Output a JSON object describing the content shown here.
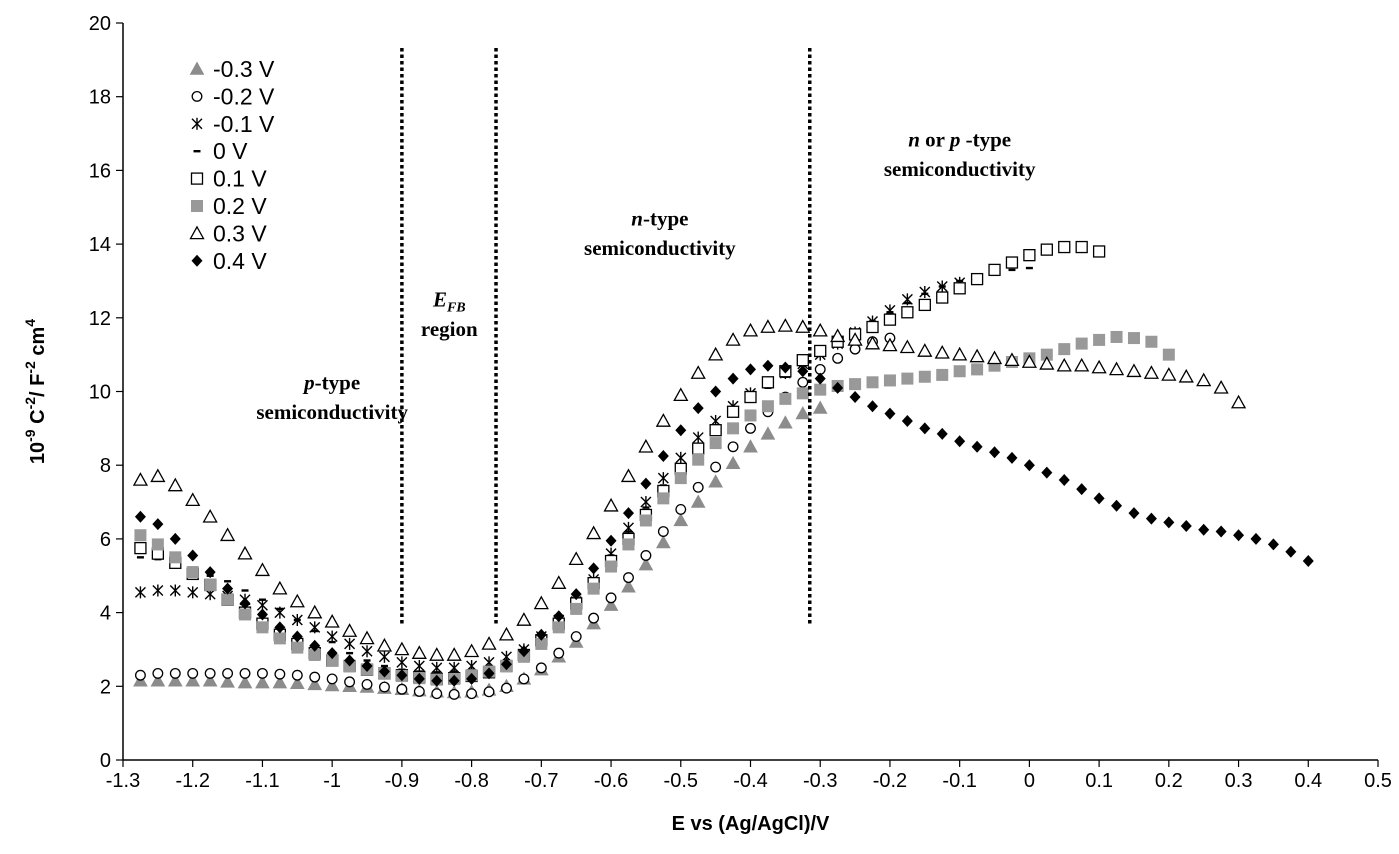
{
  "chart_data": {
    "type": "scatter",
    "xlabel": "E vs (Ag/AgCl)/V",
    "ylabel_parts": [
      "10",
      "-9",
      " C",
      "-2",
      "/ F",
      "-2",
      " cm",
      "4"
    ],
    "xlim": [
      -1.3,
      0.5
    ],
    "ylim": [
      0,
      20
    ],
    "x_ticks": [
      "-1.3",
      "-1.2",
      "-1.1",
      "-1",
      "-0.9",
      "-0.8",
      "-0.7",
      "-0.6",
      "-0.5",
      "-0.4",
      "-0.3",
      "-0.2",
      "-0.1",
      "0",
      "0.1",
      "0.2",
      "0.3",
      "0.4",
      "0.5"
    ],
    "y_ticks": [
      "0",
      "2",
      "4",
      "6",
      "8",
      "10",
      "12",
      "14",
      "16",
      "18",
      "20"
    ],
    "grid": false,
    "legend_position": "top-left",
    "vlines": [
      -0.9,
      -0.765,
      -0.315
    ],
    "annotations": [
      {
        "id": "p-type",
        "lines": [
          [
            "",
            "p",
            "-type"
          ],
          [
            "semiconductivity",
            "",
            ""
          ]
        ],
        "x": -1.0,
        "y": [
          10.05,
          9.25
        ]
      },
      {
        "id": "efb",
        "lines": [
          [
            "",
            "E",
            ""
          ],
          [
            "region",
            "",
            ""
          ]
        ],
        "sub": "FB",
        "x": -0.832,
        "y": [
          12.3,
          11.5
        ]
      },
      {
        "id": "n-type",
        "lines": [
          [
            "",
            "n",
            "-type"
          ],
          [
            "semiconductivity",
            "",
            ""
          ]
        ],
        "x": -0.53,
        "y": [
          14.5,
          13.7
        ]
      },
      {
        "id": "n-or-p",
        "lines": [
          [
            "",
            "n",
            " or "
          ],
          [
            "semiconductivity",
            "",
            ""
          ]
        ],
        "x": -0.1,
        "y": [
          16.65,
          15.85
        ]
      }
    ],
    "annotation_extra": {
      "n-or-p": {
        "italic2": "p",
        "tail": " -type"
      }
    },
    "series": [
      {
        "name": "-0.3 V",
        "marker": "triangle-gray",
        "color": "#8c8c8c",
        "x": [
          -1.275,
          -1.25,
          -1.225,
          -1.2,
          -1.175,
          -1.15,
          -1.125,
          -1.1,
          -1.075,
          -1.05,
          -1.025,
          -1.0,
          -0.975,
          -0.95,
          -0.925,
          -0.9,
          -0.875,
          -0.85,
          -0.825,
          -0.8,
          -0.775,
          -0.75,
          -0.725,
          -0.7,
          -0.675,
          -0.65,
          -0.625,
          -0.6,
          -0.575,
          -0.55,
          -0.525,
          -0.5,
          -0.475,
          -0.45,
          -0.425,
          -0.4,
          -0.375,
          -0.35,
          -0.325,
          -0.3
        ],
        "y": [
          2.15,
          2.15,
          2.15,
          2.15,
          2.15,
          2.12,
          2.1,
          2.1,
          2.1,
          2.08,
          2.05,
          2.02,
          2.0,
          1.98,
          1.95,
          1.92,
          1.88,
          1.85,
          1.83,
          1.85,
          1.9,
          2.0,
          2.2,
          2.45,
          2.8,
          3.2,
          3.7,
          4.2,
          4.7,
          5.3,
          5.9,
          6.5,
          7.0,
          7.55,
          8.05,
          8.5,
          8.85,
          9.15,
          9.4,
          9.55
        ]
      },
      {
        "name": "-0.2 V",
        "marker": "circle-open",
        "color": "#000000",
        "x": [
          -1.275,
          -1.25,
          -1.225,
          -1.2,
          -1.175,
          -1.15,
          -1.125,
          -1.1,
          -1.075,
          -1.05,
          -1.025,
          -1.0,
          -0.975,
          -0.95,
          -0.925,
          -0.9,
          -0.875,
          -0.85,
          -0.825,
          -0.8,
          -0.775,
          -0.75,
          -0.725,
          -0.7,
          -0.675,
          -0.65,
          -0.625,
          -0.6,
          -0.575,
          -0.55,
          -0.525,
          -0.5,
          -0.475,
          -0.45,
          -0.425,
          -0.4,
          -0.375,
          -0.35,
          -0.325,
          -0.3,
          -0.275,
          -0.25,
          -0.225,
          -0.2
        ],
        "y": [
          2.3,
          2.35,
          2.35,
          2.35,
          2.35,
          2.35,
          2.35,
          2.35,
          2.33,
          2.3,
          2.25,
          2.2,
          2.12,
          2.05,
          1.98,
          1.92,
          1.86,
          1.8,
          1.78,
          1.8,
          1.85,
          1.95,
          2.2,
          2.5,
          2.9,
          3.35,
          3.85,
          4.4,
          4.95,
          5.55,
          6.2,
          6.8,
          7.4,
          7.95,
          8.5,
          9.0,
          9.45,
          9.85,
          10.25,
          10.6,
          10.9,
          11.15,
          11.35,
          11.45
        ]
      },
      {
        "name": "-0.1 V",
        "marker": "asterisk",
        "color": "#000000",
        "x": [
          -1.275,
          -1.25,
          -1.225,
          -1.2,
          -1.175,
          -1.15,
          -1.125,
          -1.1,
          -1.075,
          -1.05,
          -1.025,
          -1.0,
          -0.975,
          -0.95,
          -0.925,
          -0.9,
          -0.875,
          -0.85,
          -0.825,
          -0.8,
          -0.775,
          -0.75,
          -0.725,
          -0.7,
          -0.675,
          -0.65,
          -0.625,
          -0.6,
          -0.575,
          -0.55,
          -0.525,
          -0.5,
          -0.475,
          -0.45,
          -0.425,
          -0.4,
          -0.375,
          -0.35,
          -0.325,
          -0.3,
          -0.275,
          -0.25,
          -0.225,
          -0.2,
          -0.175,
          -0.15,
          -0.125,
          -0.1
        ],
        "y": [
          4.55,
          4.6,
          4.6,
          4.55,
          4.5,
          4.45,
          4.35,
          4.2,
          4.0,
          3.8,
          3.6,
          3.35,
          3.15,
          2.95,
          2.8,
          2.65,
          2.55,
          2.5,
          2.5,
          2.55,
          2.65,
          2.8,
          3.0,
          3.35,
          3.8,
          4.3,
          4.9,
          5.6,
          6.3,
          7.0,
          7.65,
          8.2,
          8.75,
          9.2,
          9.6,
          9.95,
          10.25,
          10.5,
          10.75,
          11.0,
          11.3,
          11.6,
          11.9,
          12.2,
          12.5,
          12.7,
          12.85,
          12.95
        ]
      },
      {
        "name": "0 V",
        "marker": "dash",
        "color": "#000000",
        "x": [
          -1.275,
          -1.25,
          -1.225,
          -1.2,
          -1.175,
          -1.15,
          -1.125,
          -1.1,
          -1.075,
          -1.05,
          -1.025,
          -1.0,
          -0.975,
          -0.95,
          -0.925,
          -0.9,
          -0.875,
          -0.85,
          -0.825,
          -0.8,
          -0.775,
          -0.75,
          -0.725,
          -0.7,
          -0.675,
          -0.65,
          -0.625,
          -0.6,
          -0.575,
          -0.55,
          -0.525,
          -0.5,
          -0.475,
          -0.45,
          -0.425,
          -0.4,
          -0.375,
          -0.35,
          -0.325,
          -0.3,
          -0.275,
          -0.25,
          -0.225,
          -0.2,
          -0.175,
          -0.15,
          -0.125,
          -0.1,
          -0.075,
          -0.05,
          -0.025,
          0.0
        ],
        "y": [
          5.5,
          5.45,
          5.4,
          5.2,
          5.0,
          4.85,
          4.6,
          4.35,
          4.1,
          3.8,
          3.5,
          3.2,
          2.9,
          2.7,
          2.55,
          2.45,
          2.4,
          2.38,
          2.4,
          2.45,
          2.55,
          2.7,
          2.95,
          3.3,
          3.75,
          4.3,
          4.9,
          5.55,
          6.2,
          6.85,
          7.45,
          8.0,
          8.5,
          8.95,
          9.35,
          9.75,
          10.1,
          10.4,
          10.7,
          11.0,
          11.3,
          11.6,
          11.9,
          12.15,
          12.4,
          12.65,
          12.85,
          13.0,
          13.15,
          13.25,
          13.3,
          13.35
        ]
      },
      {
        "name": "0.1 V",
        "marker": "square-open",
        "color": "#000000",
        "x": [
          -1.275,
          -1.25,
          -1.225,
          -1.2,
          -1.175,
          -1.15,
          -1.125,
          -1.1,
          -1.075,
          -1.05,
          -1.025,
          -1.0,
          -0.975,
          -0.95,
          -0.925,
          -0.9,
          -0.875,
          -0.85,
          -0.825,
          -0.8,
          -0.775,
          -0.75,
          -0.725,
          -0.7,
          -0.675,
          -0.65,
          -0.625,
          -0.6,
          -0.575,
          -0.55,
          -0.525,
          -0.5,
          -0.475,
          -0.45,
          -0.425,
          -0.4,
          -0.375,
          -0.35,
          -0.325,
          -0.3,
          -0.275,
          -0.25,
          -0.225,
          -0.2,
          -0.175,
          -0.15,
          -0.125,
          -0.1,
          -0.075,
          -0.05,
          -0.025,
          0.0,
          0.025,
          0.05,
          0.075,
          0.1
        ],
        "y": [
          5.75,
          5.6,
          5.35,
          5.05,
          4.75,
          4.35,
          4.0,
          3.7,
          3.4,
          3.15,
          2.9,
          2.7,
          2.55,
          2.45,
          2.35,
          2.3,
          2.25,
          2.2,
          2.22,
          2.28,
          2.38,
          2.55,
          2.85,
          3.25,
          3.7,
          4.25,
          4.8,
          5.4,
          6.0,
          6.65,
          7.3,
          7.9,
          8.45,
          8.95,
          9.45,
          9.85,
          10.25,
          10.55,
          10.85,
          11.1,
          11.35,
          11.55,
          11.75,
          11.95,
          12.15,
          12.35,
          12.55,
          12.8,
          13.05,
          13.3,
          13.5,
          13.7,
          13.85,
          13.92,
          13.92,
          13.8
        ]
      },
      {
        "name": "0.2 V",
        "marker": "square-gray",
        "color": "#999999",
        "x": [
          -1.275,
          -1.25,
          -1.225,
          -1.2,
          -1.175,
          -1.15,
          -1.125,
          -1.1,
          -1.075,
          -1.05,
          -1.025,
          -1.0,
          -0.975,
          -0.95,
          -0.925,
          -0.9,
          -0.875,
          -0.85,
          -0.825,
          -0.8,
          -0.775,
          -0.75,
          -0.725,
          -0.7,
          -0.675,
          -0.65,
          -0.625,
          -0.6,
          -0.575,
          -0.55,
          -0.525,
          -0.5,
          -0.475,
          -0.45,
          -0.425,
          -0.4,
          -0.375,
          -0.35,
          -0.325,
          -0.3,
          -0.275,
          -0.25,
          -0.225,
          -0.2,
          -0.175,
          -0.15,
          -0.125,
          -0.1,
          -0.075,
          -0.05,
          -0.025,
          0.0,
          0.025,
          0.05,
          0.075,
          0.1,
          0.125,
          0.15,
          0.175,
          0.2
        ],
        "y": [
          6.1,
          5.85,
          5.5,
          5.1,
          4.75,
          4.35,
          3.95,
          3.6,
          3.3,
          3.05,
          2.85,
          2.7,
          2.55,
          2.45,
          2.35,
          2.28,
          2.22,
          2.18,
          2.2,
          2.3,
          2.4,
          2.55,
          2.8,
          3.15,
          3.6,
          4.1,
          4.65,
          5.25,
          5.85,
          6.5,
          7.1,
          7.65,
          8.15,
          8.6,
          9.0,
          9.35,
          9.6,
          9.8,
          9.95,
          10.05,
          10.15,
          10.2,
          10.25,
          10.3,
          10.35,
          10.4,
          10.45,
          10.55,
          10.6,
          10.7,
          10.8,
          10.9,
          11.0,
          11.15,
          11.3,
          11.4,
          11.48,
          11.45,
          11.35,
          11.0
        ]
      },
      {
        "name": "0.3 V",
        "marker": "triangle-open",
        "color": "#000000",
        "x": [
          -1.275,
          -1.25,
          -1.225,
          -1.2,
          -1.175,
          -1.15,
          -1.125,
          -1.1,
          -1.075,
          -1.05,
          -1.025,
          -1.0,
          -0.975,
          -0.95,
          -0.925,
          -0.9,
          -0.875,
          -0.85,
          -0.825,
          -0.8,
          -0.775,
          -0.75,
          -0.725,
          -0.7,
          -0.675,
          -0.65,
          -0.625,
          -0.6,
          -0.575,
          -0.55,
          -0.525,
          -0.5,
          -0.475,
          -0.45,
          -0.425,
          -0.4,
          -0.375,
          -0.35,
          -0.325,
          -0.3,
          -0.275,
          -0.25,
          -0.225,
          -0.2,
          -0.175,
          -0.15,
          -0.125,
          -0.1,
          -0.075,
          -0.05,
          -0.025,
          0.0,
          0.025,
          0.05,
          0.075,
          0.1,
          0.125,
          0.15,
          0.175,
          0.2,
          0.225,
          0.25,
          0.275,
          0.3
        ],
        "y": [
          7.6,
          7.7,
          7.45,
          7.05,
          6.6,
          6.1,
          5.6,
          5.15,
          4.65,
          4.3,
          4.0,
          3.75,
          3.5,
          3.3,
          3.1,
          3.0,
          2.9,
          2.85,
          2.85,
          2.95,
          3.15,
          3.4,
          3.8,
          4.25,
          4.8,
          5.45,
          6.15,
          6.9,
          7.7,
          8.5,
          9.2,
          9.9,
          10.5,
          11.0,
          11.4,
          11.65,
          11.75,
          11.78,
          11.75,
          11.65,
          11.5,
          11.4,
          11.3,
          11.25,
          11.2,
          11.1,
          11.05,
          11.0,
          10.95,
          10.9,
          10.85,
          10.8,
          10.75,
          10.7,
          10.7,
          10.65,
          10.6,
          10.55,
          10.5,
          10.45,
          10.4,
          10.3,
          10.1,
          9.7
        ]
      },
      {
        "name": "0.4 V",
        "marker": "diamond-black",
        "color": "#000000",
        "x": [
          -1.275,
          -1.25,
          -1.225,
          -1.2,
          -1.175,
          -1.15,
          -1.125,
          -1.1,
          -1.075,
          -1.05,
          -1.025,
          -1.0,
          -0.975,
          -0.95,
          -0.925,
          -0.9,
          -0.875,
          -0.85,
          -0.825,
          -0.8,
          -0.775,
          -0.75,
          -0.725,
          -0.7,
          -0.675,
          -0.65,
          -0.625,
          -0.6,
          -0.575,
          -0.55,
          -0.525,
          -0.5,
          -0.475,
          -0.45,
          -0.425,
          -0.4,
          -0.375,
          -0.35,
          -0.325,
          -0.3,
          -0.275,
          -0.25,
          -0.225,
          -0.2,
          -0.175,
          -0.15,
          -0.125,
          -0.1,
          -0.075,
          -0.05,
          -0.025,
          0.0,
          0.025,
          0.05,
          0.075,
          0.1,
          0.125,
          0.15,
          0.175,
          0.2,
          0.225,
          0.25,
          0.275,
          0.3,
          0.325,
          0.35,
          0.375,
          0.4
        ],
        "y": [
          6.6,
          6.4,
          6.0,
          5.55,
          5.1,
          4.65,
          4.25,
          3.95,
          3.6,
          3.35,
          3.1,
          2.9,
          2.7,
          2.55,
          2.4,
          2.3,
          2.2,
          2.15,
          2.15,
          2.2,
          2.35,
          2.6,
          2.95,
          3.4,
          3.9,
          4.5,
          5.2,
          5.95,
          6.7,
          7.5,
          8.25,
          8.95,
          9.55,
          10.0,
          10.35,
          10.6,
          10.7,
          10.65,
          10.55,
          10.35,
          10.1,
          9.85,
          9.6,
          9.4,
          9.2,
          9.0,
          8.85,
          8.65,
          8.5,
          8.35,
          8.2,
          8.0,
          7.8,
          7.6,
          7.35,
          7.1,
          6.9,
          6.7,
          6.55,
          6.45,
          6.35,
          6.25,
          6.2,
          6.1,
          6.0,
          5.85,
          5.65,
          5.4
        ]
      }
    ]
  }
}
